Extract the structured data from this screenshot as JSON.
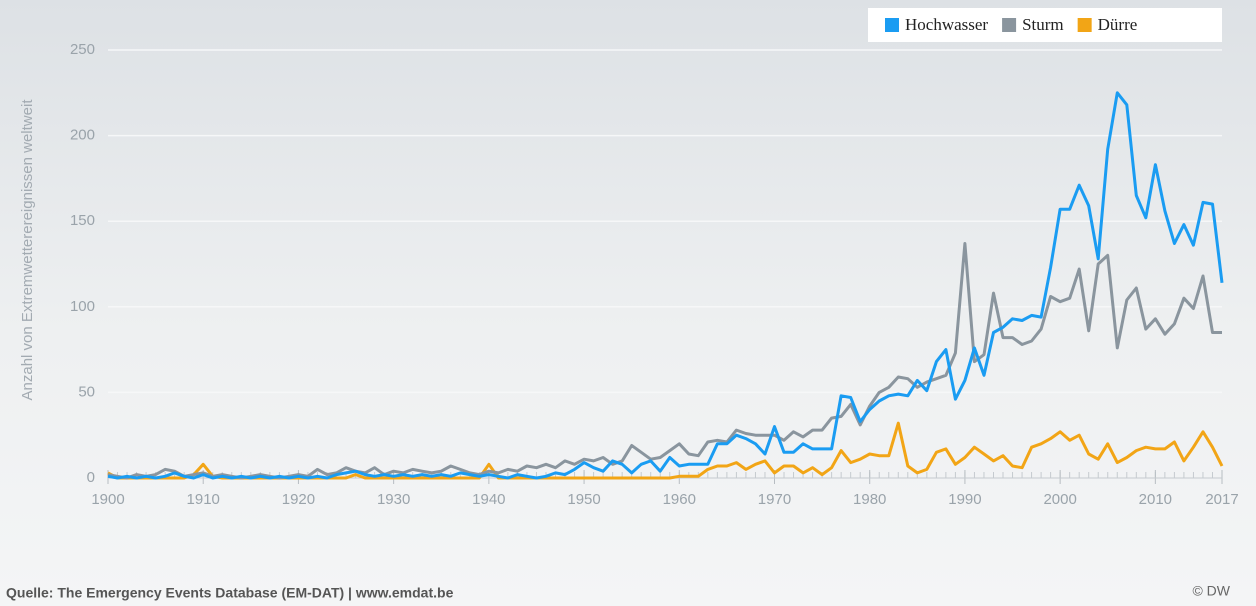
{
  "chart_data": {
    "type": "line",
    "ylabel": "Anzahl von Extremwetterereignissen weltweit",
    "source": "Quelle: The Emergency Events Database (EM-DAT) | www.emdat.be",
    "credit": "© DW",
    "x": [
      1900,
      1901,
      1902,
      1903,
      1904,
      1905,
      1906,
      1907,
      1908,
      1909,
      1910,
      1911,
      1912,
      1913,
      1914,
      1915,
      1916,
      1917,
      1918,
      1919,
      1920,
      1921,
      1922,
      1923,
      1924,
      1925,
      1926,
      1927,
      1928,
      1929,
      1930,
      1931,
      1932,
      1933,
      1934,
      1935,
      1936,
      1937,
      1938,
      1939,
      1940,
      1941,
      1942,
      1943,
      1944,
      1945,
      1946,
      1947,
      1948,
      1949,
      1950,
      1951,
      1952,
      1953,
      1954,
      1955,
      1956,
      1957,
      1958,
      1959,
      1960,
      1961,
      1962,
      1963,
      1964,
      1965,
      1966,
      1967,
      1968,
      1969,
      1970,
      1971,
      1972,
      1973,
      1974,
      1975,
      1976,
      1977,
      1978,
      1979,
      1980,
      1981,
      1982,
      1983,
      1984,
      1985,
      1986,
      1987,
      1988,
      1989,
      1990,
      1991,
      1992,
      1993,
      1994,
      1995,
      1996,
      1997,
      1998,
      1999,
      2000,
      2001,
      2002,
      2003,
      2004,
      2005,
      2006,
      2007,
      2008,
      2009,
      2010,
      2011,
      2012,
      2013,
      2014,
      2015,
      2016,
      2017
    ],
    "series": [
      {
        "name": "Hochwasser",
        "color": "#1a9cf2",
        "values": [
          1,
          0,
          1,
          0,
          1,
          0,
          1,
          3,
          1,
          0,
          2,
          0,
          1,
          0,
          1,
          0,
          1,
          0,
          1,
          0,
          1,
          0,
          1,
          0,
          2,
          3,
          4,
          2,
          1,
          2,
          1,
          2,
          1,
          2,
          1,
          2,
          1,
          3,
          2,
          1,
          2,
          1,
          0,
          2,
          1,
          0,
          1,
          3,
          2,
          5,
          9,
          6,
          4,
          10,
          8,
          3,
          8,
          10,
          4,
          12,
          7,
          8,
          8,
          8,
          20,
          20,
          25,
          23,
          20,
          14,
          30,
          15,
          15,
          20,
          17,
          17,
          17,
          48,
          47,
          33,
          40,
          45,
          48,
          49,
          48,
          57,
          51,
          68,
          75,
          46,
          57,
          76,
          60,
          85,
          88,
          93,
          92,
          95,
          94,
          123,
          157,
          157,
          171,
          159,
          128,
          192,
          225,
          218,
          165,
          152,
          183,
          156,
          137,
          148,
          136,
          161,
          160,
          114
        ]
      },
      {
        "name": "Sturm",
        "color": "#8a959e",
        "values": [
          2,
          1,
          0,
          2,
          1,
          2,
          5,
          4,
          1,
          2,
          3,
          1,
          2,
          1,
          0,
          1,
          2,
          1,
          0,
          1,
          2,
          1,
          5,
          2,
          3,
          6,
          4,
          3,
          6,
          2,
          4,
          3,
          5,
          4,
          3,
          4,
          7,
          5,
          3,
          2,
          4,
          3,
          5,
          4,
          7,
          6,
          8,
          6,
          10,
          8,
          11,
          10,
          12,
          8,
          10,
          19,
          15,
          11,
          12,
          16,
          20,
          14,
          13,
          21,
          22,
          21,
          28,
          26,
          25,
          25,
          25,
          22,
          27,
          24,
          28,
          28,
          35,
          36,
          43,
          31,
          42,
          50,
          53,
          59,
          58,
          53,
          56,
          58,
          60,
          73,
          137,
          68,
          72,
          108,
          82,
          82,
          78,
          80,
          87,
          106,
          103,
          105,
          122,
          86,
          125,
          130,
          76,
          104,
          111,
          87,
          93,
          84,
          90,
          105,
          99,
          118,
          85,
          85
        ]
      },
      {
        "name": "Dürre",
        "color": "#f2a516",
        "values": [
          3,
          0,
          0,
          0,
          0,
          0,
          0,
          0,
          0,
          2,
          8,
          1,
          0,
          0,
          0,
          0,
          0,
          0,
          0,
          0,
          0,
          0,
          0,
          0,
          0,
          0,
          2,
          0,
          0,
          0,
          0,
          0,
          0,
          0,
          0,
          0,
          0,
          0,
          0,
          0,
          8,
          0,
          0,
          0,
          0,
          0,
          0,
          0,
          0,
          0,
          0,
          0,
          0,
          0,
          0,
          0,
          0,
          0,
          0,
          0,
          1,
          1,
          1,
          5,
          7,
          7,
          9,
          5,
          8,
          10,
          3,
          7,
          7,
          3,
          6,
          2,
          6,
          16,
          9,
          11,
          14,
          13,
          13,
          32,
          7,
          3,
          5,
          15,
          17,
          8,
          12,
          18,
          14,
          10,
          13,
          7,
          6,
          18,
          20,
          23,
          27,
          22,
          25,
          14,
          11,
          20,
          9,
          12,
          16,
          18,
          17,
          17,
          21,
          10,
          18,
          27,
          18,
          7
        ]
      }
    ],
    "xlim": [
      1900,
      2017
    ],
    "xticks": [
      1900,
      1910,
      1920,
      1930,
      1940,
      1950,
      1960,
      1970,
      1980,
      1990,
      2000,
      2010,
      2017
    ],
    "ylim": [
      0,
      250
    ],
    "yticks": [
      0,
      50,
      100,
      150,
      200,
      250
    ],
    "grid": true,
    "legend": "top-right"
  }
}
